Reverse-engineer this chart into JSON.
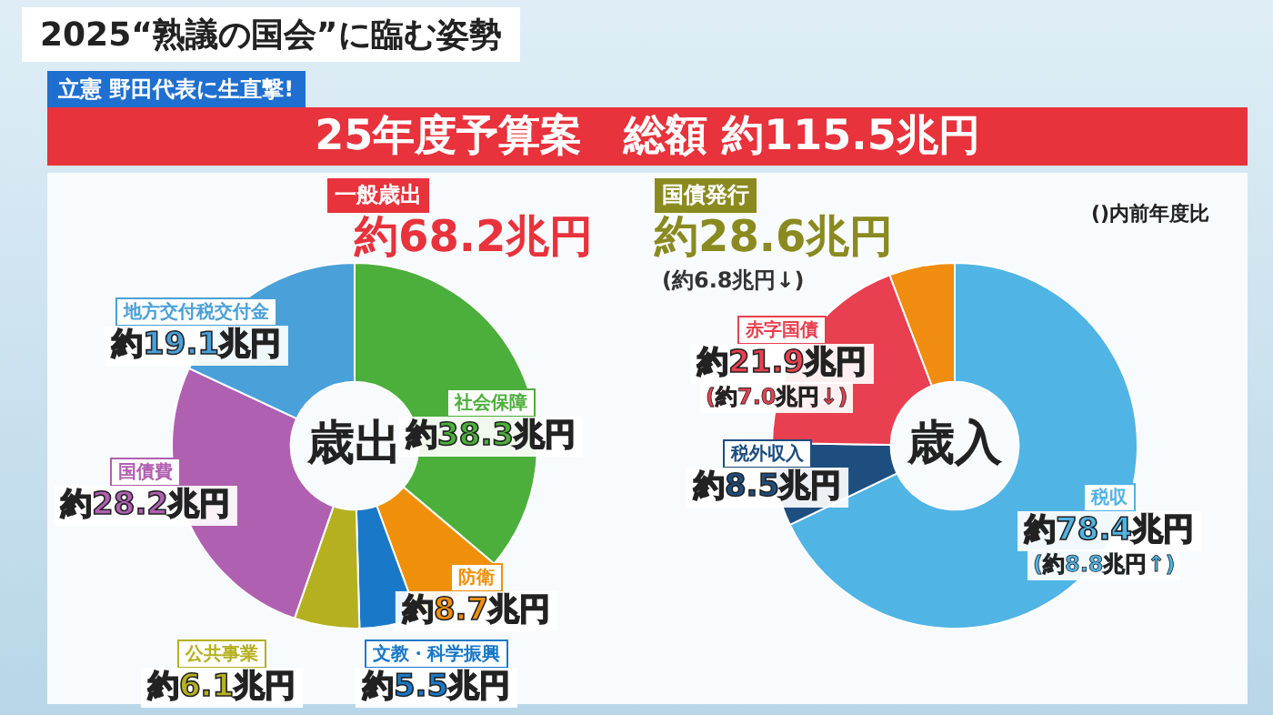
{
  "chart_data": [
    {
      "type": "donut",
      "title": "歳出",
      "categories": [
        "社会保障",
        "防衛",
        "文教・科学振興",
        "公共事業",
        "国債費",
        "地方交付税交付金"
      ],
      "values": [
        38.3,
        8.7,
        5.5,
        6.1,
        28.2,
        19.1
      ],
      "colors": [
        "#4caf3c",
        "#f0900a",
        "#1a78c8",
        "#b5b020",
        "#b060b0",
        "#4aa0d8"
      ],
      "value_labels": [
        "約38.3兆円",
        "約8.7兆円",
        "約5.5兆円",
        "約6.1兆円",
        "約28.2兆円",
        "約19.1兆円"
      ],
      "legend": false,
      "annotations": [
        "2025“熟議の国会”に臨む姿勢",
        "立憲 野田代表に生直撃!",
        "25年度予算案　総額 約115.5兆円",
        "一般歳出",
        "約68.2兆円"
      ]
    },
    {
      "type": "donut",
      "title": "歳入",
      "categories": [
        "税収",
        "税外収入",
        "赤字国債",
        null
      ],
      "values": [
        78.4,
        8.5,
        21.9,
        6.7
      ],
      "colors": [
        "#50b4e4",
        "#1e4e80",
        "#e84050",
        "#f08c10"
      ],
      "value_labels": [
        "約78.4兆円",
        "約8.5兆円",
        "約21.9兆円",
        null
      ],
      "legend": false,
      "annotations": [
        "国債発行",
        "約28.6兆円",
        "(約6.8兆円↓)",
        "(約7.0兆円↓)",
        "(約8.8兆円↑)",
        "()内前年度比"
      ]
    }
  ]
}
